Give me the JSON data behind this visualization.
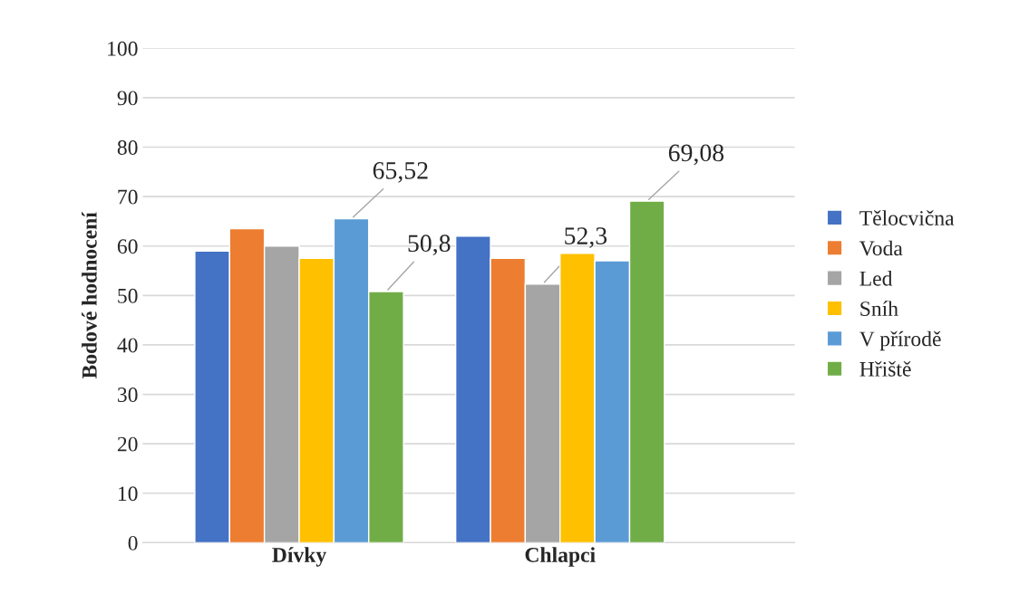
{
  "chart_data": {
    "type": "bar",
    "ylabel": "Bodové hodnocení",
    "categories": [
      "Dívky",
      "Chlapci"
    ],
    "series": [
      {
        "name": "Tělocvična",
        "color": "#4472c4",
        "values": [
          59,
          62
        ]
      },
      {
        "name": "Voda",
        "color": "#ed7d31",
        "values": [
          63.5,
          57.5
        ],
        "value_labels": [
          null,
          null
        ]
      },
      {
        "name": "Led",
        "color": "#a5a5a5",
        "values": [
          60,
          52.3
        ],
        "value_labels": [
          null,
          "52,3"
        ]
      },
      {
        "name": "Sníh",
        "color": "#ffc000",
        "values": [
          57.5,
          58.5
        ]
      },
      {
        "name": "V přírodě",
        "color": "#5b9bd5",
        "values": [
          65.52,
          57
        ],
        "value_labels": [
          "65,52",
          null
        ]
      },
      {
        "name": "Hřiště",
        "color": "#70ad47",
        "values": [
          50.8,
          69.08
        ],
        "value_labels": [
          "50,8",
          "69,08"
        ]
      }
    ],
    "ylim": [
      0,
      100
    ],
    "yticks": [
      0,
      10,
      20,
      30,
      40,
      50,
      60,
      70,
      80,
      90,
      100
    ],
    "grid": "y",
    "legend": "right"
  }
}
